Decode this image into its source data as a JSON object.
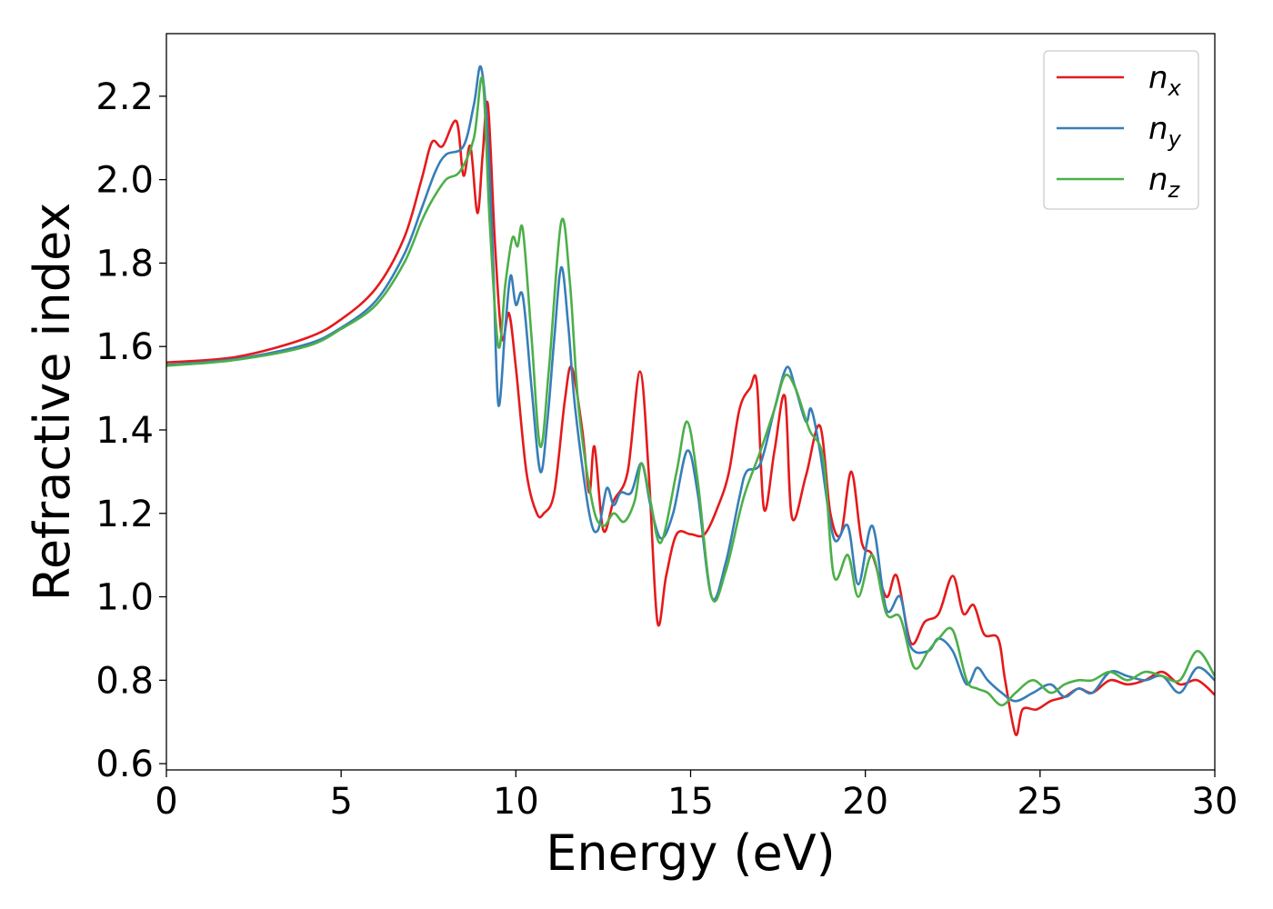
{
  "chart_data": {
    "type": "line",
    "title": "",
    "xlabel": "Energy (eV)",
    "ylabel": "Refractive index",
    "xlim": [
      0,
      30
    ],
    "ylim": [
      0.585,
      2.35
    ],
    "xticks": [
      0,
      5,
      10,
      15,
      20,
      25,
      30
    ],
    "xtick_labels": [
      "0",
      "5",
      "10",
      "15",
      "20",
      "25",
      "30"
    ],
    "yticks": [
      0.6,
      0.8,
      1.0,
      1.2,
      1.4,
      1.6,
      1.8,
      2.0,
      2.2
    ],
    "ytick_labels": [
      "0.6",
      "0.8",
      "1.0",
      "1.2",
      "1.4",
      "1.6",
      "1.8",
      "2.0",
      "2.2"
    ],
    "grid": false,
    "legend_position": "top-right",
    "series": [
      {
        "name": "n_x",
        "label_base": "n",
        "label_sub": "x",
        "color": "#e41a1c",
        "points": [
          [
            0,
            1.562
          ],
          [
            2,
            1.575
          ],
          [
            4,
            1.62
          ],
          [
            5,
            1.665
          ],
          [
            6,
            1.74
          ],
          [
            6.8,
            1.86
          ],
          [
            7.3,
            2.0
          ],
          [
            7.6,
            2.09
          ],
          [
            7.9,
            2.08
          ],
          [
            8.3,
            2.14
          ],
          [
            8.5,
            2.01
          ],
          [
            8.7,
            2.08
          ],
          [
            8.9,
            1.92
          ],
          [
            9.05,
            2.06
          ],
          [
            9.2,
            2.18
          ],
          [
            9.4,
            1.85
          ],
          [
            9.6,
            1.62
          ],
          [
            9.8,
            1.68
          ],
          [
            10.0,
            1.55
          ],
          [
            10.3,
            1.3
          ],
          [
            10.6,
            1.2
          ],
          [
            10.8,
            1.2
          ],
          [
            11.1,
            1.25
          ],
          [
            11.4,
            1.47
          ],
          [
            11.6,
            1.55
          ],
          [
            11.9,
            1.4
          ],
          [
            12.1,
            1.25
          ],
          [
            12.25,
            1.36
          ],
          [
            12.5,
            1.16
          ],
          [
            12.8,
            1.23
          ],
          [
            13.2,
            1.3
          ],
          [
            13.55,
            1.54
          ],
          [
            13.8,
            1.3
          ],
          [
            14.05,
            0.94
          ],
          [
            14.3,
            1.05
          ],
          [
            14.6,
            1.15
          ],
          [
            15.0,
            1.15
          ],
          [
            15.4,
            1.15
          ],
          [
            15.8,
            1.22
          ],
          [
            16.1,
            1.3
          ],
          [
            16.4,
            1.45
          ],
          [
            16.7,
            1.5
          ],
          [
            16.9,
            1.51
          ],
          [
            17.1,
            1.21
          ],
          [
            17.4,
            1.35
          ],
          [
            17.7,
            1.48
          ],
          [
            17.9,
            1.19
          ],
          [
            18.3,
            1.29
          ],
          [
            18.7,
            1.41
          ],
          [
            19.0,
            1.2
          ],
          [
            19.3,
            1.15
          ],
          [
            19.6,
            1.3
          ],
          [
            19.9,
            1.13
          ],
          [
            20.2,
            1.1
          ],
          [
            20.6,
            1.0
          ],
          [
            20.9,
            1.05
          ],
          [
            21.3,
            0.89
          ],
          [
            21.7,
            0.94
          ],
          [
            22.1,
            0.96
          ],
          [
            22.5,
            1.05
          ],
          [
            22.8,
            0.96
          ],
          [
            23.1,
            0.98
          ],
          [
            23.4,
            0.91
          ],
          [
            23.8,
            0.9
          ],
          [
            24.0,
            0.8
          ],
          [
            24.3,
            0.67
          ],
          [
            24.5,
            0.73
          ],
          [
            24.9,
            0.73
          ],
          [
            25.3,
            0.75
          ],
          [
            25.7,
            0.76
          ],
          [
            26.1,
            0.78
          ],
          [
            26.5,
            0.77
          ],
          [
            27.0,
            0.8
          ],
          [
            27.5,
            0.79
          ],
          [
            28.0,
            0.8
          ],
          [
            28.5,
            0.82
          ],
          [
            29.0,
            0.79
          ],
          [
            29.5,
            0.8
          ],
          [
            30.0,
            0.765
          ]
        ]
      },
      {
        "name": "n_y",
        "label_base": "n",
        "label_sub": "y",
        "color": "#377eb8",
        "points": [
          [
            0,
            1.556
          ],
          [
            2,
            1.57
          ],
          [
            4,
            1.605
          ],
          [
            5,
            1.645
          ],
          [
            6,
            1.71
          ],
          [
            6.8,
            1.82
          ],
          [
            7.3,
            1.93
          ],
          [
            7.7,
            2.02
          ],
          [
            8.0,
            2.06
          ],
          [
            8.5,
            2.08
          ],
          [
            8.8,
            2.18
          ],
          [
            9.0,
            2.27
          ],
          [
            9.2,
            2.1
          ],
          [
            9.35,
            1.8
          ],
          [
            9.5,
            1.46
          ],
          [
            9.7,
            1.65
          ],
          [
            9.85,
            1.77
          ],
          [
            10.0,
            1.7
          ],
          [
            10.2,
            1.72
          ],
          [
            10.45,
            1.5
          ],
          [
            10.7,
            1.3
          ],
          [
            10.9,
            1.42
          ],
          [
            11.1,
            1.62
          ],
          [
            11.3,
            1.79
          ],
          [
            11.5,
            1.65
          ],
          [
            11.7,
            1.45
          ],
          [
            12.1,
            1.2
          ],
          [
            12.35,
            1.16
          ],
          [
            12.6,
            1.26
          ],
          [
            12.8,
            1.22
          ],
          [
            13.0,
            1.25
          ],
          [
            13.3,
            1.25
          ],
          [
            13.6,
            1.32
          ],
          [
            13.85,
            1.22
          ],
          [
            14.15,
            1.14
          ],
          [
            14.5,
            1.2
          ],
          [
            14.9,
            1.35
          ],
          [
            15.2,
            1.25
          ],
          [
            15.6,
            1.0
          ],
          [
            16.0,
            1.08
          ],
          [
            16.4,
            1.24
          ],
          [
            16.6,
            1.3
          ],
          [
            17.0,
            1.32
          ],
          [
            17.4,
            1.45
          ],
          [
            17.75,
            1.55
          ],
          [
            18.0,
            1.5
          ],
          [
            18.3,
            1.42
          ],
          [
            18.45,
            1.45
          ],
          [
            18.7,
            1.35
          ],
          [
            19.1,
            1.14
          ],
          [
            19.5,
            1.17
          ],
          [
            19.8,
            1.03
          ],
          [
            20.2,
            1.17
          ],
          [
            20.6,
            0.97
          ],
          [
            21.0,
            1.0
          ],
          [
            21.3,
            0.88
          ],
          [
            21.8,
            0.87
          ],
          [
            22.1,
            0.9
          ],
          [
            22.5,
            0.87
          ],
          [
            22.9,
            0.79
          ],
          [
            23.2,
            0.83
          ],
          [
            23.5,
            0.8
          ],
          [
            23.9,
            0.77
          ],
          [
            24.3,
            0.75
          ],
          [
            24.8,
            0.77
          ],
          [
            25.3,
            0.79
          ],
          [
            25.7,
            0.76
          ],
          [
            26.1,
            0.78
          ],
          [
            26.5,
            0.77
          ],
          [
            27.0,
            0.82
          ],
          [
            27.5,
            0.81
          ],
          [
            28.0,
            0.8
          ],
          [
            28.5,
            0.81
          ],
          [
            29.0,
            0.77
          ],
          [
            29.5,
            0.83
          ],
          [
            30.0,
            0.8
          ]
        ]
      },
      {
        "name": "n_z",
        "label_base": "n",
        "label_sub": "z",
        "color": "#4daf4a",
        "points": [
          [
            0,
            1.554
          ],
          [
            2,
            1.568
          ],
          [
            4,
            1.6
          ],
          [
            5,
            1.642
          ],
          [
            6,
            1.7
          ],
          [
            6.8,
            1.8
          ],
          [
            7.3,
            1.9
          ],
          [
            7.6,
            1.95
          ],
          [
            8.0,
            2.0
          ],
          [
            8.4,
            2.02
          ],
          [
            8.8,
            2.1
          ],
          [
            9.05,
            2.24
          ],
          [
            9.25,
            1.9
          ],
          [
            9.5,
            1.6
          ],
          [
            9.7,
            1.75
          ],
          [
            9.9,
            1.86
          ],
          [
            10.05,
            1.84
          ],
          [
            10.2,
            1.88
          ],
          [
            10.45,
            1.62
          ],
          [
            10.7,
            1.36
          ],
          [
            10.95,
            1.55
          ],
          [
            11.3,
            1.9
          ],
          [
            11.55,
            1.75
          ],
          [
            11.8,
            1.45
          ],
          [
            12.2,
            1.22
          ],
          [
            12.5,
            1.17
          ],
          [
            12.8,
            1.2
          ],
          [
            13.1,
            1.18
          ],
          [
            13.4,
            1.23
          ],
          [
            13.6,
            1.32
          ],
          [
            13.85,
            1.23
          ],
          [
            14.15,
            1.13
          ],
          [
            14.6,
            1.3
          ],
          [
            14.9,
            1.42
          ],
          [
            15.2,
            1.28
          ],
          [
            15.6,
            1.0
          ],
          [
            16.0,
            1.06
          ],
          [
            16.4,
            1.2
          ],
          [
            16.6,
            1.26
          ],
          [
            17.0,
            1.35
          ],
          [
            17.4,
            1.45
          ],
          [
            17.7,
            1.53
          ],
          [
            18.0,
            1.5
          ],
          [
            18.4,
            1.4
          ],
          [
            18.8,
            1.33
          ],
          [
            19.1,
            1.05
          ],
          [
            19.5,
            1.1
          ],
          [
            19.8,
            1.0
          ],
          [
            20.2,
            1.1
          ],
          [
            20.6,
            0.96
          ],
          [
            21.0,
            0.95
          ],
          [
            21.4,
            0.83
          ],
          [
            21.8,
            0.87
          ],
          [
            22.1,
            0.9
          ],
          [
            22.5,
            0.92
          ],
          [
            22.9,
            0.8
          ],
          [
            23.2,
            0.78
          ],
          [
            23.5,
            0.77
          ],
          [
            23.9,
            0.74
          ],
          [
            24.3,
            0.77
          ],
          [
            24.8,
            0.8
          ],
          [
            25.3,
            0.77
          ],
          [
            25.7,
            0.79
          ],
          [
            26.1,
            0.8
          ],
          [
            26.5,
            0.8
          ],
          [
            27.0,
            0.82
          ],
          [
            27.5,
            0.8
          ],
          [
            28.0,
            0.82
          ],
          [
            28.5,
            0.81
          ],
          [
            29.0,
            0.8
          ],
          [
            29.5,
            0.87
          ],
          [
            30.0,
            0.81
          ]
        ]
      }
    ]
  }
}
